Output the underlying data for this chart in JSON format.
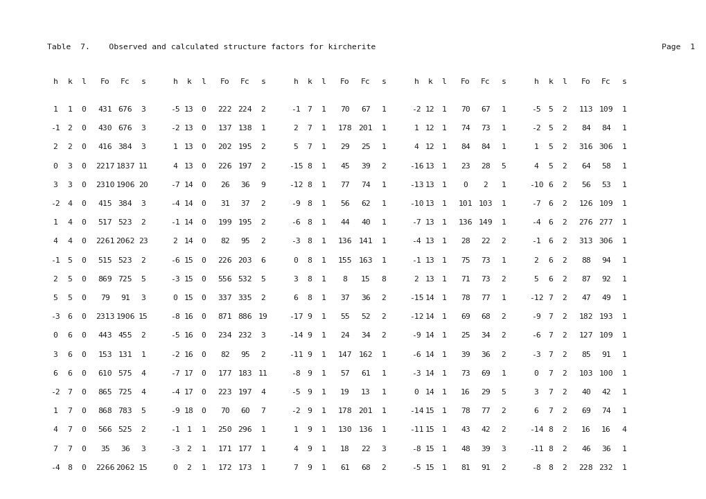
{
  "title_left": "Table  7.    Observed and calculated structure factors for kircherite",
  "title_right": "Page  1",
  "header": [
    "h",
    "k",
    "l",
    "Fo",
    "Fc",
    "s"
  ],
  "rows": [
    [
      [
        "1",
        "1",
        "0",
        "431",
        "676",
        "3"
      ],
      [
        "-5",
        "13",
        "0",
        "222",
        "224",
        "2"
      ],
      [
        "-1",
        "7",
        "1",
        "70",
        "67",
        "1"
      ],
      [
        "-2",
        "12",
        "1",
        "70",
        "67",
        "1"
      ],
      [
        "-5",
        "5",
        "2",
        "113",
        "109",
        "1"
      ]
    ],
    [
      [
        "-1",
        "2",
        "0",
        "430",
        "676",
        "3"
      ],
      [
        "-2",
        "13",
        "0",
        "137",
        "138",
        "1"
      ],
      [
        "2",
        "7",
        "1",
        "178",
        "201",
        "1"
      ],
      [
        "1",
        "12",
        "1",
        "74",
        "73",
        "1"
      ],
      [
        "-2",
        "5",
        "2",
        "84",
        "84",
        "1"
      ]
    ],
    [
      [
        "2",
        "2",
        "0",
        "416",
        "384",
        "3"
      ],
      [
        "1",
        "13",
        "0",
        "202",
        "195",
        "2"
      ],
      [
        "5",
        "7",
        "1",
        "29",
        "25",
        "1"
      ],
      [
        "4",
        "12",
        "1",
        "84",
        "84",
        "1"
      ],
      [
        "1",
        "5",
        "2",
        "316",
        "306",
        "1"
      ]
    ],
    [
      [
        "0",
        "3",
        "0",
        "2217",
        "1837",
        "11"
      ],
      [
        "4",
        "13",
        "0",
        "226",
        "197",
        "2"
      ],
      [
        "-15",
        "8",
        "1",
        "45",
        "39",
        "2"
      ],
      [
        "-16",
        "13",
        "1",
        "23",
        "28",
        "5"
      ],
      [
        "4",
        "5",
        "2",
        "64",
        "58",
        "1"
      ]
    ],
    [
      [
        "3",
        "3",
        "0",
        "2310",
        "1906",
        "20"
      ],
      [
        "-7",
        "14",
        "0",
        "26",
        "36",
        "9"
      ],
      [
        "-12",
        "8",
        "1",
        "77",
        "74",
        "1"
      ],
      [
        "-13",
        "13",
        "1",
        "0",
        "2",
        "1"
      ],
      [
        "-10",
        "6",
        "2",
        "56",
        "53",
        "1"
      ]
    ],
    [
      [
        "-2",
        "4",
        "0",
        "415",
        "384",
        "3"
      ],
      [
        "-4",
        "14",
        "0",
        "31",
        "37",
        "2"
      ],
      [
        "-9",
        "8",
        "1",
        "56",
        "62",
        "1"
      ],
      [
        "-10",
        "13",
        "1",
        "101",
        "103",
        "1"
      ],
      [
        "-7",
        "6",
        "2",
        "126",
        "109",
        "1"
      ]
    ],
    [
      [
        "1",
        "4",
        "0",
        "517",
        "523",
        "2"
      ],
      [
        "-1",
        "14",
        "0",
        "199",
        "195",
        "2"
      ],
      [
        "-6",
        "8",
        "1",
        "44",
        "40",
        "1"
      ],
      [
        "-7",
        "13",
        "1",
        "136",
        "149",
        "1"
      ],
      [
        "-4",
        "6",
        "2",
        "276",
        "277",
        "1"
      ]
    ],
    [
      [
        "4",
        "4",
        "0",
        "2261",
        "2062",
        "23"
      ],
      [
        "2",
        "14",
        "0",
        "82",
        "95",
        "2"
      ],
      [
        "-3",
        "8",
        "1",
        "136",
        "141",
        "1"
      ],
      [
        "-4",
        "13",
        "1",
        "28",
        "22",
        "2"
      ],
      [
        "-1",
        "6",
        "2",
        "313",
        "306",
        "1"
      ]
    ],
    [
      [
        "-1",
        "5",
        "0",
        "515",
        "523",
        "2"
      ],
      [
        "-6",
        "15",
        "0",
        "226",
        "203",
        "6"
      ],
      [
        "0",
        "8",
        "1",
        "155",
        "163",
        "1"
      ],
      [
        "-1",
        "13",
        "1",
        "75",
        "73",
        "1"
      ],
      [
        "2",
        "6",
        "2",
        "88",
        "94",
        "1"
      ]
    ],
    [
      [
        "2",
        "5",
        "0",
        "869",
        "725",
        "5"
      ],
      [
        "-3",
        "15",
        "0",
        "556",
        "532",
        "5"
      ],
      [
        "3",
        "8",
        "1",
        "8",
        "15",
        "8"
      ],
      [
        "2",
        "13",
        "1",
        "71",
        "73",
        "2"
      ],
      [
        "5",
        "6",
        "2",
        "87",
        "92",
        "1"
      ]
    ],
    [
      [
        "5",
        "5",
        "0",
        "79",
        "91",
        "3"
      ],
      [
        "0",
        "15",
        "0",
        "337",
        "335",
        "2"
      ],
      [
        "6",
        "8",
        "1",
        "37",
        "36",
        "2"
      ],
      [
        "-15",
        "14",
        "1",
        "78",
        "77",
        "1"
      ],
      [
        "-12",
        "7",
        "2",
        "47",
        "49",
        "1"
      ]
    ],
    [
      [
        "-3",
        "6",
        "0",
        "2313",
        "1906",
        "15"
      ],
      [
        "-8",
        "16",
        "0",
        "871",
        "886",
        "19"
      ],
      [
        "-17",
        "9",
        "1",
        "55",
        "52",
        "2"
      ],
      [
        "-12",
        "14",
        "1",
        "69",
        "68",
        "2"
      ],
      [
        "-9",
        "7",
        "2",
        "182",
        "193",
        "1"
      ]
    ],
    [
      [
        "0",
        "6",
        "0",
        "443",
        "455",
        "2"
      ],
      [
        "-5",
        "16",
        "0",
        "234",
        "232",
        "3"
      ],
      [
        "-14",
        "9",
        "1",
        "24",
        "34",
        "2"
      ],
      [
        "-9",
        "14",
        "1",
        "25",
        "34",
        "2"
      ],
      [
        "-6",
        "7",
        "2",
        "127",
        "109",
        "1"
      ]
    ],
    [
      [
        "3",
        "6",
        "0",
        "153",
        "131",
        "1"
      ],
      [
        "-2",
        "16",
        "0",
        "82",
        "95",
        "2"
      ],
      [
        "-11",
        "9",
        "1",
        "147",
        "162",
        "1"
      ],
      [
        "-6",
        "14",
        "1",
        "39",
        "36",
        "2"
      ],
      [
        "-3",
        "7",
        "2",
        "85",
        "91",
        "1"
      ]
    ],
    [
      [
        "6",
        "6",
        "0",
        "610",
        "575",
        "4"
      ],
      [
        "-7",
        "17",
        "0",
        "177",
        "183",
        "11"
      ],
      [
        "-8",
        "9",
        "1",
        "57",
        "61",
        "1"
      ],
      [
        "-3",
        "14",
        "1",
        "73",
        "69",
        "1"
      ],
      [
        "0",
        "7",
        "2",
        "103",
        "100",
        "1"
      ]
    ],
    [
      [
        "-2",
        "7",
        "0",
        "865",
        "725",
        "4"
      ],
      [
        "-4",
        "17",
        "0",
        "223",
        "197",
        "4"
      ],
      [
        "-5",
        "9",
        "1",
        "19",
        "13",
        "1"
      ],
      [
        "0",
        "14",
        "1",
        "16",
        "29",
        "5"
      ],
      [
        "3",
        "7",
        "2",
        "40",
        "42",
        "1"
      ]
    ],
    [
      [
        "1",
        "7",
        "0",
        "868",
        "783",
        "5"
      ],
      [
        "-9",
        "18",
        "0",
        "70",
        "60",
        "7"
      ],
      [
        "-2",
        "9",
        "1",
        "178",
        "201",
        "1"
      ],
      [
        "-14",
        "15",
        "1",
        "78",
        "77",
        "2"
      ],
      [
        "6",
        "7",
        "2",
        "69",
        "74",
        "1"
      ]
    ],
    [
      [
        "4",
        "7",
        "0",
        "566",
        "525",
        "2"
      ],
      [
        "-1",
        "1",
        "1",
        "250",
        "296",
        "1"
      ],
      [
        "1",
        "9",
        "1",
        "130",
        "136",
        "1"
      ],
      [
        "-11",
        "15",
        "1",
        "43",
        "42",
        "2"
      ],
      [
        "-14",
        "8",
        "2",
        "16",
        "16",
        "4"
      ]
    ],
    [
      [
        "7",
        "7",
        "0",
        "35",
        "36",
        "3"
      ],
      [
        "-3",
        "2",
        "1",
        "171",
        "177",
        "1"
      ],
      [
        "4",
        "9",
        "1",
        "18",
        "22",
        "3"
      ],
      [
        "-8",
        "15",
        "1",
        "48",
        "39",
        "3"
      ],
      [
        "-11",
        "8",
        "2",
        "46",
        "36",
        "1"
      ]
    ],
    [
      [
        "-4",
        "8",
        "0",
        "2266",
        "2062",
        "15"
      ],
      [
        "0",
        "2",
        "1",
        "172",
        "173",
        "1"
      ],
      [
        "7",
        "9",
        "1",
        "61",
        "68",
        "2"
      ],
      [
        "-5",
        "15",
        "1",
        "81",
        "91",
        "2"
      ],
      [
        "-8",
        "8",
        "2",
        "228",
        "232",
        "1"
      ]
    ]
  ],
  "font_size": 8.2,
  "title_font_size": 8.2,
  "bg_color": "#ffffff",
  "text_color": "#1a1a1a"
}
